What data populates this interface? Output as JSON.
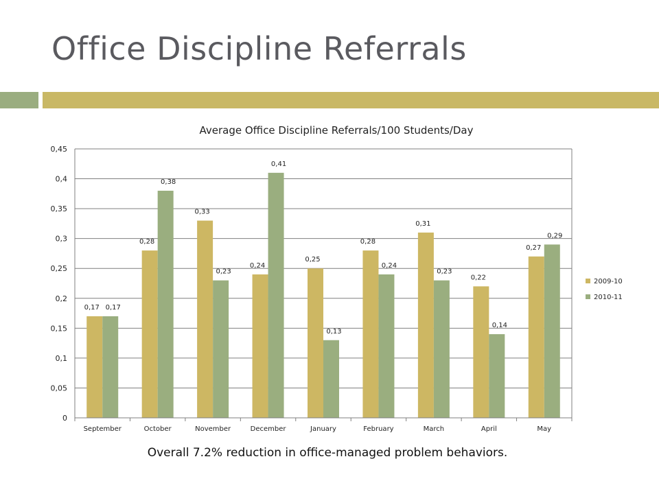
{
  "slide": {
    "title": "Office Discipline Referrals",
    "caption": "Overall 7.2% reduction in office-managed problem behaviors."
  },
  "colors": {
    "title_text": "#5a5a5f",
    "accent_left": "#9aad80",
    "accent_right": "#c9b865",
    "series_2009_10": "#cdb763",
    "series_2010_11": "#9aae7f",
    "gridline": "#7f7f7f"
  },
  "chart_data": {
    "type": "bar",
    "title": "Average Office Discipline Referrals/100 Students/Day",
    "categories": [
      "September",
      "October",
      "November",
      "December",
      "January",
      "February",
      "March",
      "April",
      "May"
    ],
    "series": [
      {
        "name": "2009-10",
        "values": [
          0.17,
          0.28,
          0.33,
          0.24,
          0.25,
          0.28,
          0.31,
          0.22,
          0.27
        ],
        "color": "#cdb763"
      },
      {
        "name": "2010-11",
        "values": [
          0.17,
          0.38,
          0.23,
          0.41,
          0.13,
          0.24,
          0.23,
          0.14,
          0.29
        ],
        "color": "#9aae7f"
      }
    ],
    "ylim": [
      0,
      0.45
    ],
    "yticks": [
      "0",
      "0,05",
      "0,1",
      "0,15",
      "0,2",
      "0,25",
      "0,3",
      "0,35",
      "0,4",
      "0,45"
    ],
    "grid": true,
    "legend": "right",
    "decimal_separator": ","
  }
}
